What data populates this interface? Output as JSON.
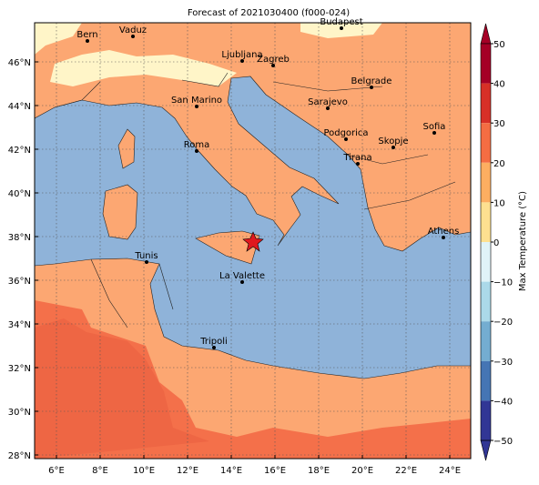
{
  "title": "Forecast of 2021030400 (f000-024)",
  "lon_ticks": [
    "6°E",
    "8°E",
    "10°E",
    "12°E",
    "14°E",
    "16°E",
    "18°E",
    "20°E",
    "22°E",
    "24°E"
  ],
  "lat_ticks": [
    "28°N",
    "30°N",
    "32°N",
    "34°N",
    "36°N",
    "38°N",
    "40°N",
    "42°N",
    "44°N",
    "46°N"
  ],
  "cities": [
    "Bern",
    "Vaduz",
    "Budapest",
    "Ljubljana",
    "Zagreb",
    "Belgrade",
    "San Marino",
    "Sarajevo",
    "Sofia",
    "Podgorica",
    "Skopje",
    "Roma",
    "Tirana",
    "Athens",
    "Tunis",
    "La Valette",
    "Tripoli"
  ],
  "colorbar": {
    "label": "Max Temperature (°C)",
    "ticks": [
      "50",
      "40",
      "30",
      "20",
      "10",
      "0",
      "−10",
      "−20",
      "−30",
      "−40",
      "−50"
    ],
    "colors": [
      "#a50026",
      "#d73027",
      "#f46d43",
      "#fdae61",
      "#fee090",
      "#e0f3f8",
      "#abd9e9",
      "#74add1",
      "#4575b4",
      "#313695"
    ]
  }
}
